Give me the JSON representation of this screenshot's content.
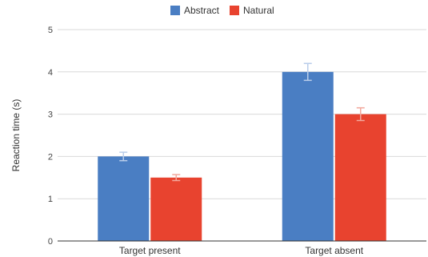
{
  "chart_data": {
    "type": "bar",
    "categories": [
      "Target present",
      "Target absent"
    ],
    "series": [
      {
        "name": "Abstract",
        "color": "#4a7ec3",
        "error_color": "#b9cdea",
        "values": [
          2.0,
          4.0
        ],
        "errors": [
          0.1,
          0.2
        ]
      },
      {
        "name": "Natural",
        "color": "#e8432f",
        "error_color": "#f2a79c",
        "values": [
          1.5,
          3.0
        ],
        "errors": [
          0.07,
          0.15
        ]
      }
    ],
    "xlabel": "",
    "ylabel": "Reaction time (s)",
    "ylim": [
      0,
      5
    ],
    "yticks": [
      "0",
      "1",
      "2",
      "3",
      "4",
      "5"
    ],
    "grid": true,
    "legend": "top-center"
  }
}
